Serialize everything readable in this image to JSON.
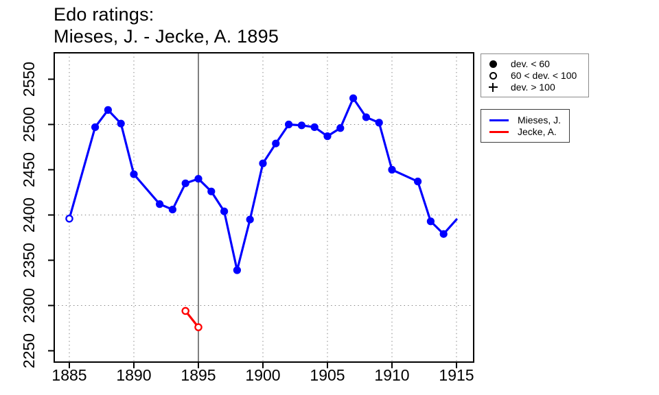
{
  "title": {
    "line1": "Edo ratings:",
    "line2": "Mieses, J. - Jecke, A. 1895"
  },
  "colors": {
    "mieses": "#0000ff",
    "jecke": "#ff0000",
    "grid": "#7f7f7f",
    "event_line": "#3a3a3a",
    "axis": "#000000",
    "background": "#ffffff"
  },
  "legend_symbols": {
    "items": [
      {
        "symbol": "filled-circle",
        "label": "dev. < 60"
      },
      {
        "symbol": "open-circle",
        "label": "60 < dev. < 100"
      },
      {
        "symbol": "plus",
        "label": "dev. > 100"
      }
    ]
  },
  "legend_series": {
    "items": [
      {
        "series": "mieses",
        "label": "Mieses, J."
      },
      {
        "series": "jecke",
        "label": "Jecke, A."
      }
    ]
  },
  "chart_data": {
    "type": "line",
    "title": "Edo ratings: Mieses, J. - Jecke, A. 1895",
    "xlabel": "",
    "ylabel": "",
    "xlim": [
      1883.8,
      1916.3
    ],
    "ylim": [
      2238,
      2579
    ],
    "x_ticks": [
      1885,
      1890,
      1895,
      1900,
      1905,
      1910,
      1915
    ],
    "y_ticks": [
      2250,
      2300,
      2350,
      2400,
      2450,
      2500,
      2550
    ],
    "v_gridlines": [
      1885,
      1890,
      1900,
      1905,
      1910,
      1915
    ],
    "h_gridlines": [
      2300,
      2400,
      2500
    ],
    "event_year": 1895,
    "grid": "dotted",
    "legend_position": "top-right-outside",
    "marker_legend": {
      "filled": "dev. < 60",
      "open": "60 < dev. < 100",
      "plus": "dev. > 100"
    },
    "series": [
      {
        "name": "Mieses, J.",
        "color": "#0000ff",
        "points": [
          {
            "year": 1885,
            "value": 2396,
            "marker": "open"
          },
          {
            "year": 1887,
            "value": 2497,
            "marker": "filled"
          },
          {
            "year": 1888,
            "value": 2516,
            "marker": "filled"
          },
          {
            "year": 1889,
            "value": 2501,
            "marker": "filled"
          },
          {
            "year": 1890,
            "value": 2445,
            "marker": "filled"
          },
          {
            "year": 1892,
            "value": 2412,
            "marker": "filled"
          },
          {
            "year": 1893,
            "value": 2406,
            "marker": "filled"
          },
          {
            "year": 1894,
            "value": 2435,
            "marker": "filled"
          },
          {
            "year": 1895,
            "value": 2440,
            "marker": "filled"
          },
          {
            "year": 1896,
            "value": 2426,
            "marker": "filled"
          },
          {
            "year": 1897,
            "value": 2404,
            "marker": "filled"
          },
          {
            "year": 1898,
            "value": 2339,
            "marker": "filled"
          },
          {
            "year": 1899,
            "value": 2395,
            "marker": "filled"
          },
          {
            "year": 1900,
            "value": 2457,
            "marker": "filled"
          },
          {
            "year": 1901,
            "value": 2479,
            "marker": "filled"
          },
          {
            "year": 1902,
            "value": 2500,
            "marker": "filled"
          },
          {
            "year": 1903,
            "value": 2499,
            "marker": "filled"
          },
          {
            "year": 1904,
            "value": 2497,
            "marker": "filled"
          },
          {
            "year": 1905,
            "value": 2487,
            "marker": "filled"
          },
          {
            "year": 1906,
            "value": 2496,
            "marker": "filled"
          },
          {
            "year": 1907,
            "value": 2529,
            "marker": "filled"
          },
          {
            "year": 1908,
            "value": 2508,
            "marker": "filled"
          },
          {
            "year": 1909,
            "value": 2502,
            "marker": "filled"
          },
          {
            "year": 1910,
            "value": 2450,
            "marker": "filled"
          },
          {
            "year": 1912,
            "value": 2437,
            "marker": "filled"
          },
          {
            "year": 1913,
            "value": 2393,
            "marker": "filled"
          },
          {
            "year": 1914,
            "value": 2379,
            "marker": "filled"
          },
          {
            "year": 1915,
            "value": 2395,
            "marker": "none"
          }
        ]
      },
      {
        "name": "Jecke, A.",
        "color": "#ff0000",
        "points": [
          {
            "year": 1894,
            "value": 2294,
            "marker": "open"
          },
          {
            "year": 1895,
            "value": 2276,
            "marker": "open"
          }
        ]
      }
    ]
  }
}
